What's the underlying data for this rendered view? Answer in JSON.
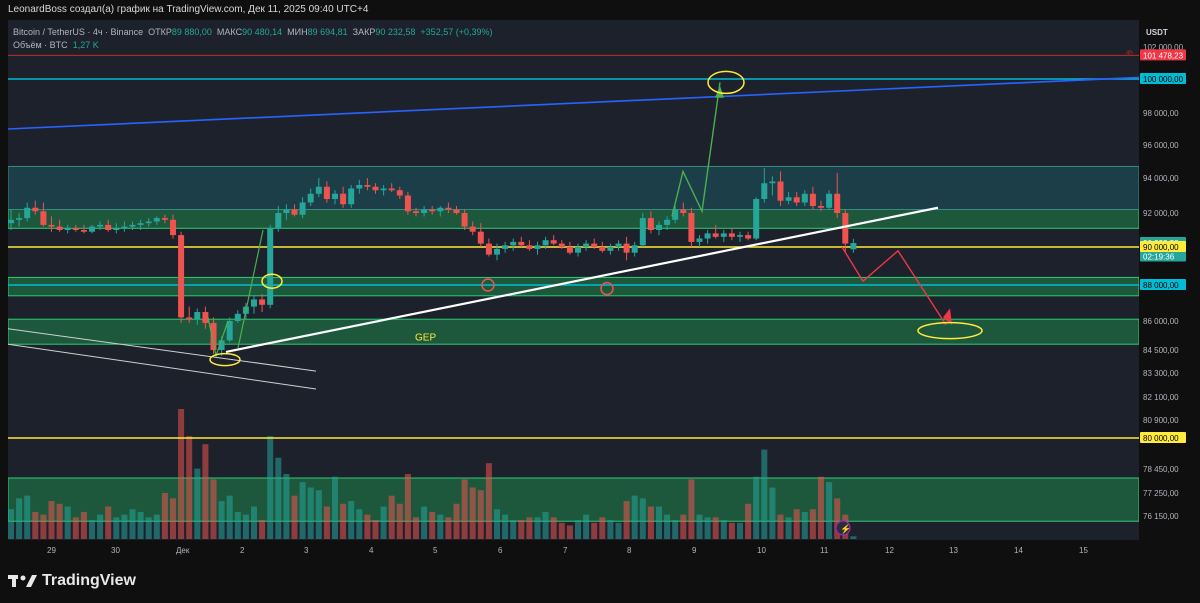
{
  "header": {
    "caption": "LeonardBoss создал(а) график на TradingView.com, Дек 11, 2025 09:40 UTC+4"
  },
  "legend": {
    "symbol": "Bitcoin / TetherUS · 4ч · Binance",
    "open_label": "ОТКР",
    "open": "89 880,00",
    "high_label": "МАКС",
    "high": "90 480,14",
    "low_label": "МИН",
    "low": "89 694,81",
    "close_label": "ЗАКР",
    "close": "90 232,58",
    "change": "+352,57 (+0,39%)",
    "volume_label": "Объём · BTC",
    "volume": "1,27 K"
  },
  "price_axis": {
    "currency": "USDT",
    "ticks": [
      "102 000,00",
      "98 000,00",
      "96 000,00",
      "94 000,00",
      "92 000,00",
      "86 000,00",
      "84 500,00",
      "83 300,00",
      "82 100,00",
      "80 900,00",
      "78 450,00",
      "77 250,00",
      "76 150,00"
    ],
    "badges": [
      {
        "label": "101 478,23",
        "bg": "#f23645",
        "fg": "#ffffff"
      },
      {
        "label": "100 000,00",
        "bg": "#00bcd4",
        "fg": "#000000"
      },
      {
        "label": "90 232,58",
        "bg": "#26a69a",
        "fg": "#ffffff"
      },
      {
        "label": "02:19:36",
        "bg": "#26a69a",
        "fg": "#ffffff"
      },
      {
        "label": "90 000,00",
        "bg": "#ffeb3b",
        "fg": "#000000"
      },
      {
        "label": "88 000,00",
        "bg": "#00bcd4",
        "fg": "#000000"
      },
      {
        "label": "80 000,00",
        "bg": "#ffeb3b",
        "fg": "#000000"
      }
    ],
    "marker_4h": "4h"
  },
  "time_axis": {
    "ticks": [
      "29",
      "30",
      "Дек",
      "2",
      "3",
      "4",
      "5",
      "6",
      "7",
      "8",
      "9",
      "10",
      "11",
      "12",
      "13",
      "14",
      "15"
    ]
  },
  "annotations": {
    "gap_label": "GEP"
  },
  "footer": {
    "brand": "TradingView"
  },
  "colors": {
    "up": "#26a69a",
    "down": "#ef5350",
    "zone": "#1f9c55",
    "cyan": "#00bcd4",
    "yellow": "#ffeb3b",
    "blue": "#2962ff",
    "arrow_green": "#4caf50",
    "arrow_red": "#f23645"
  },
  "chart_data": {
    "type": "candlestick",
    "title": "Bitcoin / TetherUS · 4ч · Binance",
    "ylim": [
      75600,
      102500
    ],
    "x_labels": [
      "29",
      "30",
      "Дек",
      "2",
      "3",
      "4",
      "5",
      "6",
      "7",
      "8",
      "9",
      "10",
      "11",
      "12",
      "13",
      "14",
      "15"
    ],
    "candles": [
      {
        "o": 91400,
        "h": 92200,
        "l": 91000,
        "c": 91600
      },
      {
        "o": 91600,
        "h": 92000,
        "l": 91200,
        "c": 91700
      },
      {
        "o": 91700,
        "h": 92600,
        "l": 91500,
        "c": 92300
      },
      {
        "o": 92300,
        "h": 92700,
        "l": 91900,
        "c": 92100
      },
      {
        "o": 92100,
        "h": 92600,
        "l": 91200,
        "c": 91300
      },
      {
        "o": 91300,
        "h": 91800,
        "l": 90900,
        "c": 91200
      },
      {
        "o": 91200,
        "h": 91600,
        "l": 90900,
        "c": 91000
      },
      {
        "o": 91000,
        "h": 91300,
        "l": 90800,
        "c": 91100
      },
      {
        "o": 91100,
        "h": 91300,
        "l": 90900,
        "c": 91000
      },
      {
        "o": 91000,
        "h": 91300,
        "l": 90800,
        "c": 90900
      },
      {
        "o": 90900,
        "h": 91300,
        "l": 90800,
        "c": 91200
      },
      {
        "o": 91200,
        "h": 91500,
        "l": 91000,
        "c": 91300
      },
      {
        "o": 91300,
        "h": 91600,
        "l": 90900,
        "c": 91000
      },
      {
        "o": 91000,
        "h": 91400,
        "l": 90800,
        "c": 91100
      },
      {
        "o": 91100,
        "h": 91500,
        "l": 90900,
        "c": 91200
      },
      {
        "o": 91200,
        "h": 91500,
        "l": 91000,
        "c": 91300
      },
      {
        "o": 91300,
        "h": 91600,
        "l": 91000,
        "c": 91400
      },
      {
        "o": 91400,
        "h": 91700,
        "l": 91200,
        "c": 91500
      },
      {
        "o": 91500,
        "h": 91800,
        "l": 91300,
        "c": 91700
      },
      {
        "o": 91700,
        "h": 91900,
        "l": 91400,
        "c": 91600
      },
      {
        "o": 91600,
        "h": 91900,
        "l": 90500,
        "c": 90700
      },
      {
        "o": 90700,
        "h": 90900,
        "l": 85900,
        "c": 86200
      },
      {
        "o": 86200,
        "h": 86800,
        "l": 85900,
        "c": 86100
      },
      {
        "o": 86100,
        "h": 86700,
        "l": 85800,
        "c": 86500
      },
      {
        "o": 86500,
        "h": 86800,
        "l": 85600,
        "c": 85900
      },
      {
        "o": 85900,
        "h": 86200,
        "l": 84300,
        "c": 84500
      },
      {
        "o": 84500,
        "h": 85200,
        "l": 84200,
        "c": 85000
      },
      {
        "o": 85000,
        "h": 86200,
        "l": 84900,
        "c": 86000
      },
      {
        "o": 86000,
        "h": 86600,
        "l": 85900,
        "c": 86400
      },
      {
        "o": 86400,
        "h": 87000,
        "l": 86100,
        "c": 86800
      },
      {
        "o": 86800,
        "h": 87400,
        "l": 86400,
        "c": 87200
      },
      {
        "o": 87200,
        "h": 87500,
        "l": 86500,
        "c": 86900
      },
      {
        "o": 86900,
        "h": 91300,
        "l": 86700,
        "c": 91100
      },
      {
        "o": 91100,
        "h": 92400,
        "l": 90900,
        "c": 92000
      },
      {
        "o": 92000,
        "h": 92500,
        "l": 91600,
        "c": 92200
      },
      {
        "o": 92200,
        "h": 92500,
        "l": 91800,
        "c": 91900
      },
      {
        "o": 91900,
        "h": 92900,
        "l": 91700,
        "c": 92600
      },
      {
        "o": 92600,
        "h": 93400,
        "l": 92400,
        "c": 93100
      },
      {
        "o": 93100,
        "h": 94000,
        "l": 92900,
        "c": 93500
      },
      {
        "o": 93500,
        "h": 93800,
        "l": 92600,
        "c": 92800
      },
      {
        "o": 92800,
        "h": 93300,
        "l": 92500,
        "c": 93100
      },
      {
        "o": 93100,
        "h": 93500,
        "l": 92300,
        "c": 92500
      },
      {
        "o": 92500,
        "h": 93600,
        "l": 92300,
        "c": 93400
      },
      {
        "o": 93400,
        "h": 93900,
        "l": 93100,
        "c": 93600
      },
      {
        "o": 93600,
        "h": 94000,
        "l": 93300,
        "c": 93500
      },
      {
        "o": 93500,
        "h": 93700,
        "l": 93100,
        "c": 93300
      },
      {
        "o": 93300,
        "h": 93600,
        "l": 93000,
        "c": 93400
      },
      {
        "o": 93400,
        "h": 93700,
        "l": 93200,
        "c": 93300
      },
      {
        "o": 93300,
        "h": 93500,
        "l": 92800,
        "c": 93000
      },
      {
        "o": 93000,
        "h": 93200,
        "l": 91900,
        "c": 92100
      },
      {
        "o": 92100,
        "h": 92300,
        "l": 91800,
        "c": 92000
      },
      {
        "o": 92000,
        "h": 92400,
        "l": 91800,
        "c": 92200
      },
      {
        "o": 92200,
        "h": 92400,
        "l": 91900,
        "c": 92100
      },
      {
        "o": 92100,
        "h": 92400,
        "l": 91800,
        "c": 92300
      },
      {
        "o": 92300,
        "h": 92600,
        "l": 92000,
        "c": 92200
      },
      {
        "o": 92200,
        "h": 92400,
        "l": 91900,
        "c": 92000
      },
      {
        "o": 92000,
        "h": 92200,
        "l": 91000,
        "c": 91200
      },
      {
        "o": 91200,
        "h": 91500,
        "l": 90700,
        "c": 90900
      },
      {
        "o": 90900,
        "h": 91400,
        "l": 90000,
        "c": 90200
      },
      {
        "o": 90200,
        "h": 90500,
        "l": 89500,
        "c": 89600
      },
      {
        "o": 89600,
        "h": 90200,
        "l": 89300,
        "c": 89900
      },
      {
        "o": 89900,
        "h": 90300,
        "l": 89700,
        "c": 90100
      },
      {
        "o": 90100,
        "h": 90500,
        "l": 89800,
        "c": 90300
      },
      {
        "o": 90300,
        "h": 90600,
        "l": 90000,
        "c": 90100
      },
      {
        "o": 90100,
        "h": 90400,
        "l": 89800,
        "c": 89900
      },
      {
        "o": 89900,
        "h": 90300,
        "l": 89600,
        "c": 90100
      },
      {
        "o": 90100,
        "h": 90600,
        "l": 89900,
        "c": 90400
      },
      {
        "o": 90400,
        "h": 90700,
        "l": 90100,
        "c": 90200
      },
      {
        "o": 90200,
        "h": 90400,
        "l": 89900,
        "c": 90000
      },
      {
        "o": 90000,
        "h": 90300,
        "l": 89600,
        "c": 89700
      },
      {
        "o": 89700,
        "h": 90200,
        "l": 89500,
        "c": 90000
      },
      {
        "o": 90000,
        "h": 90400,
        "l": 89800,
        "c": 90200
      },
      {
        "o": 90200,
        "h": 90500,
        "l": 89900,
        "c": 90000
      },
      {
        "o": 90000,
        "h": 90300,
        "l": 89700,
        "c": 89800
      },
      {
        "o": 89800,
        "h": 90200,
        "l": 89600,
        "c": 90000
      },
      {
        "o": 90000,
        "h": 90400,
        "l": 89800,
        "c": 90200
      },
      {
        "o": 90200,
        "h": 90600,
        "l": 89300,
        "c": 89700
      },
      {
        "o": 89700,
        "h": 90300,
        "l": 89500,
        "c": 90100
      },
      {
        "o": 90100,
        "h": 92000,
        "l": 90000,
        "c": 91700
      },
      {
        "o": 91700,
        "h": 92100,
        "l": 90800,
        "c": 91000
      },
      {
        "o": 91000,
        "h": 91500,
        "l": 90700,
        "c": 91300
      },
      {
        "o": 91300,
        "h": 91800,
        "l": 91000,
        "c": 91600
      },
      {
        "o": 91600,
        "h": 92400,
        "l": 91400,
        "c": 92200
      },
      {
        "o": 92200,
        "h": 92600,
        "l": 91800,
        "c": 92000
      },
      {
        "o": 92000,
        "h": 92300,
        "l": 90000,
        "c": 90300
      },
      {
        "o": 90300,
        "h": 90700,
        "l": 90000,
        "c": 90500
      },
      {
        "o": 90500,
        "h": 91000,
        "l": 90200,
        "c": 90800
      },
      {
        "o": 90800,
        "h": 91300,
        "l": 90500,
        "c": 90600
      },
      {
        "o": 90600,
        "h": 91000,
        "l": 90300,
        "c": 90800
      },
      {
        "o": 90800,
        "h": 91100,
        "l": 90400,
        "c": 90600
      },
      {
        "o": 90600,
        "h": 90900,
        "l": 90300,
        "c": 90700
      },
      {
        "o": 90700,
        "h": 90900,
        "l": 90400,
        "c": 90500
      },
      {
        "o": 90500,
        "h": 92900,
        "l": 90400,
        "c": 92800
      },
      {
        "o": 92800,
        "h": 94600,
        "l": 92600,
        "c": 93700
      },
      {
        "o": 93700,
        "h": 94100,
        "l": 93000,
        "c": 93800
      },
      {
        "o": 93800,
        "h": 94400,
        "l": 92400,
        "c": 92700
      },
      {
        "o": 92700,
        "h": 93200,
        "l": 92500,
        "c": 92900
      },
      {
        "o": 92900,
        "h": 93200,
        "l": 92400,
        "c": 92600
      },
      {
        "o": 92600,
        "h": 93300,
        "l": 92400,
        "c": 93100
      },
      {
        "o": 93100,
        "h": 93500,
        "l": 92200,
        "c": 92400
      },
      {
        "o": 92400,
        "h": 92700,
        "l": 92100,
        "c": 92300
      },
      {
        "o": 92300,
        "h": 93300,
        "l": 92200,
        "c": 93100
      },
      {
        "o": 93100,
        "h": 94300,
        "l": 91700,
        "c": 92000
      },
      {
        "o": 92000,
        "h": 92200,
        "l": 89700,
        "c": 90200
      },
      {
        "o": 89880,
        "h": 90480,
        "l": 89695,
        "c": 90233
      }
    ],
    "volume": [
      11,
      15,
      16,
      10,
      9,
      14,
      13,
      12,
      8,
      10,
      7,
      9,
      12,
      8,
      9,
      11,
      10,
      8,
      9,
      17,
      15,
      48,
      38,
      26,
      35,
      22,
      14,
      16,
      10,
      9,
      12,
      7,
      38,
      30,
      24,
      16,
      21,
      19,
      18,
      12,
      23,
      13,
      14,
      11,
      9,
      7,
      12,
      16,
      13,
      24,
      8,
      12,
      10,
      9,
      8,
      13,
      22,
      19,
      18,
      28,
      11,
      9,
      7,
      7,
      8,
      8,
      10,
      8,
      6,
      5,
      7,
      9,
      6,
      8,
      7,
      6,
      14,
      16,
      15,
      12,
      12,
      9,
      7,
      9,
      22,
      9,
      8,
      8,
      7,
      6,
      6,
      13,
      23,
      33,
      19,
      9,
      8,
      11,
      10,
      11,
      23,
      21,
      15,
      9,
      1
    ],
    "price_levels": [
      {
        "value": 100000,
        "style": "cyan"
      },
      {
        "value": 101478.23,
        "style": "red"
      },
      {
        "value": 90000,
        "style": "yellow"
      },
      {
        "value": 80000,
        "style": "yellow"
      },
      {
        "value": 88000,
        "style": "cyan"
      }
    ],
    "zones": [
      {
        "from": 91100,
        "to": 92200
      },
      {
        "from": 87400,
        "to": 88400
      },
      {
        "from": 84800,
        "to": 86100
      },
      {
        "from": 75900,
        "to": 78000
      }
    ]
  }
}
